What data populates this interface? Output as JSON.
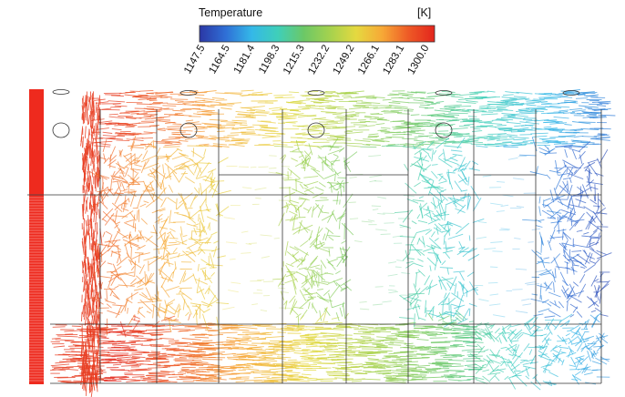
{
  "colorbar": {
    "title": "Temperature",
    "unit": "[K]",
    "min": 1147.5,
    "max": 1300.0,
    "ticks": [
      "1147.5",
      "1164.5",
      "1181.4",
      "1198.3",
      "1215.3",
      "1232.2",
      "1249.2",
      "1266.1",
      "1283.1",
      "1300.0"
    ],
    "stops": [
      "#2b37a5",
      "#2f6fd6",
      "#34b8e8",
      "#3fcfb9",
      "#6cc866",
      "#a5d24e",
      "#e5d940",
      "#f7a836",
      "#ee5a26",
      "#e3251d"
    ]
  },
  "figure": {
    "inlet_color": "#ee2a1e"
  }
}
